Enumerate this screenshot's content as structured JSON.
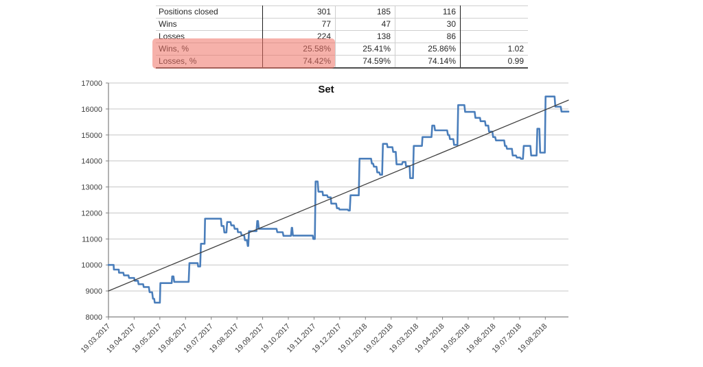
{
  "table": {
    "rows": [
      {
        "label": "Positions closed",
        "values": [
          "301",
          "185",
          "116",
          ""
        ]
      },
      {
        "label": "Wins",
        "values": [
          "77",
          "47",
          "30",
          ""
        ]
      },
      {
        "label": "Losses",
        "values": [
          "224",
          "138",
          "86",
          ""
        ]
      },
      {
        "label": "Wins, %",
        "values": [
          "25.58%",
          "25.41%",
          "25.86%",
          "1.02"
        ]
      },
      {
        "label": "Losses, %",
        "values": [
          "74.42%",
          "74.59%",
          "74.14%",
          "0.99"
        ]
      }
    ],
    "highlight_color": "#ef7165"
  },
  "chart_data": {
    "type": "line",
    "title": "Set",
    "xlabel": "",
    "ylabel": "",
    "ylim": [
      8000,
      17000
    ],
    "y_tick_step": 1000,
    "x_range": [
      0,
      17.9
    ],
    "grid": true,
    "legend_position": "none",
    "x_tick_labels": [
      "19.03.2017",
      "19.04.2017",
      "19.05.2017",
      "19.06.2017",
      "19.07.2017",
      "19.08.2017",
      "19.09.2017",
      "19.10.2017",
      "19.11.2017",
      "19.12.2017",
      "19.01.2018",
      "19.02.2018",
      "19.03.2018",
      "19.04.2018",
      "19.05.2018",
      "19.06.2018",
      "19.07.2018",
      "19.08.2018"
    ],
    "series": [
      {
        "name": "equity-curve",
        "color": "#4a7ebb",
        "width": 2.6,
        "points": [
          [
            0,
            10000
          ],
          [
            0.2,
            10000
          ],
          [
            0.21,
            9820
          ],
          [
            0.4,
            9820
          ],
          [
            0.41,
            9700
          ],
          [
            0.58,
            9700
          ],
          [
            0.6,
            9600
          ],
          [
            0.78,
            9600
          ],
          [
            0.8,
            9500
          ],
          [
            1.0,
            9500
          ],
          [
            1.02,
            9390
          ],
          [
            1.15,
            9390
          ],
          [
            1.17,
            9260
          ],
          [
            1.35,
            9260
          ],
          [
            1.37,
            9150
          ],
          [
            1.57,
            9150
          ],
          [
            1.6,
            8950
          ],
          [
            1.7,
            8950
          ],
          [
            1.73,
            8700
          ],
          [
            1.78,
            8700
          ],
          [
            1.8,
            8550
          ],
          [
            2.0,
            8550
          ],
          [
            2.02,
            9300
          ],
          [
            2.46,
            9300
          ],
          [
            2.48,
            9560
          ],
          [
            2.53,
            9560
          ],
          [
            2.56,
            9350
          ],
          [
            3.12,
            9350
          ],
          [
            3.15,
            10070
          ],
          [
            3.47,
            10070
          ],
          [
            3.49,
            9940
          ],
          [
            3.57,
            9940
          ],
          [
            3.6,
            10815
          ],
          [
            3.74,
            10815
          ],
          [
            3.76,
            11780
          ],
          [
            4.38,
            11780
          ],
          [
            4.4,
            11500
          ],
          [
            4.48,
            11500
          ],
          [
            4.51,
            11250
          ],
          [
            4.59,
            11250
          ],
          [
            4.62,
            11650
          ],
          [
            4.75,
            11650
          ],
          [
            4.78,
            11520
          ],
          [
            4.88,
            11520
          ],
          [
            4.91,
            11390
          ],
          [
            5.02,
            11390
          ],
          [
            5.04,
            11260
          ],
          [
            5.15,
            11260
          ],
          [
            5.18,
            11140
          ],
          [
            5.28,
            11140
          ],
          [
            5.31,
            10950
          ],
          [
            5.39,
            10950
          ],
          [
            5.42,
            10730
          ],
          [
            5.44,
            10730
          ],
          [
            5.47,
            11300
          ],
          [
            5.76,
            11300
          ],
          [
            5.79,
            11690
          ],
          [
            5.82,
            11690
          ],
          [
            5.85,
            11390
          ],
          [
            6.54,
            11390
          ],
          [
            6.57,
            11260
          ],
          [
            6.78,
            11260
          ],
          [
            6.81,
            11120
          ],
          [
            7.1,
            11120
          ],
          [
            7.13,
            11430
          ],
          [
            7.15,
            11430
          ],
          [
            7.18,
            11130
          ],
          [
            7.95,
            11130
          ],
          [
            7.97,
            11000
          ],
          [
            8.03,
            11000
          ],
          [
            8.06,
            13210
          ],
          [
            8.14,
            13210
          ],
          [
            8.17,
            12820
          ],
          [
            8.33,
            12820
          ],
          [
            8.35,
            12680
          ],
          [
            8.51,
            12680
          ],
          [
            8.54,
            12600
          ],
          [
            8.65,
            12600
          ],
          [
            8.67,
            12360
          ],
          [
            8.86,
            12360
          ],
          [
            8.89,
            12180
          ],
          [
            8.97,
            12180
          ],
          [
            8.99,
            12130
          ],
          [
            9.31,
            12130
          ],
          [
            9.34,
            12090
          ],
          [
            9.39,
            12090
          ],
          [
            9.42,
            12680
          ],
          [
            9.74,
            12680
          ],
          [
            9.77,
            14090
          ],
          [
            10.22,
            14090
          ],
          [
            10.25,
            13900
          ],
          [
            10.3,
            13900
          ],
          [
            10.33,
            13780
          ],
          [
            10.43,
            13780
          ],
          [
            10.46,
            13560
          ],
          [
            10.54,
            13560
          ],
          [
            10.57,
            13470
          ],
          [
            10.65,
            13470
          ],
          [
            10.68,
            14660
          ],
          [
            10.84,
            14660
          ],
          [
            10.86,
            14530
          ],
          [
            11.05,
            14530
          ],
          [
            11.08,
            14350
          ],
          [
            11.18,
            14350
          ],
          [
            11.21,
            13870
          ],
          [
            11.42,
            13870
          ],
          [
            11.45,
            13960
          ],
          [
            11.56,
            13960
          ],
          [
            11.58,
            13800
          ],
          [
            11.72,
            13800
          ],
          [
            11.74,
            13340
          ],
          [
            11.85,
            13340
          ],
          [
            11.88,
            14580
          ],
          [
            12.2,
            14580
          ],
          [
            12.22,
            14920
          ],
          [
            12.57,
            14920
          ],
          [
            12.6,
            15360
          ],
          [
            12.68,
            15360
          ],
          [
            12.71,
            15180
          ],
          [
            13.18,
            15180
          ],
          [
            13.21,
            15000
          ],
          [
            13.26,
            15000
          ],
          [
            13.29,
            14840
          ],
          [
            13.42,
            14840
          ],
          [
            13.45,
            14620
          ],
          [
            13.58,
            14620
          ],
          [
            13.61,
            16150
          ],
          [
            13.85,
            16150
          ],
          [
            13.88,
            15890
          ],
          [
            14.25,
            15890
          ],
          [
            14.28,
            15660
          ],
          [
            14.46,
            15660
          ],
          [
            14.48,
            15530
          ],
          [
            14.65,
            15530
          ],
          [
            14.68,
            15360
          ],
          [
            14.78,
            15360
          ],
          [
            14.81,
            15130
          ],
          [
            14.94,
            15130
          ],
          [
            14.97,
            14920
          ],
          [
            15.05,
            14920
          ],
          [
            15.08,
            14790
          ],
          [
            15.4,
            14790
          ],
          [
            15.43,
            14580
          ],
          [
            15.48,
            14580
          ],
          [
            15.51,
            14470
          ],
          [
            15.7,
            14470
          ],
          [
            15.73,
            14210
          ],
          [
            15.86,
            14210
          ],
          [
            15.89,
            14130
          ],
          [
            16.02,
            14130
          ],
          [
            16.05,
            14080
          ],
          [
            16.13,
            14080
          ],
          [
            16.16,
            14580
          ],
          [
            16.42,
            14580
          ],
          [
            16.45,
            14210
          ],
          [
            16.66,
            14210
          ],
          [
            16.69,
            15240
          ],
          [
            16.77,
            15240
          ],
          [
            16.8,
            14320
          ],
          [
            16.98,
            14320
          ],
          [
            17.01,
            16480
          ],
          [
            17.36,
            16480
          ],
          [
            17.39,
            16090
          ],
          [
            17.6,
            16090
          ],
          [
            17.63,
            15900
          ],
          [
            17.9,
            15900
          ]
        ]
      },
      {
        "name": "trend-line",
        "color": "#404040",
        "width": 1.3,
        "points": [
          [
            0,
            9000
          ],
          [
            17.9,
            16340
          ]
        ]
      }
    ]
  },
  "colors": {
    "grid": "#c6c6c6",
    "axis": "#808080",
    "tick_text": "#3c3c3c",
    "title_text": "#111111"
  }
}
